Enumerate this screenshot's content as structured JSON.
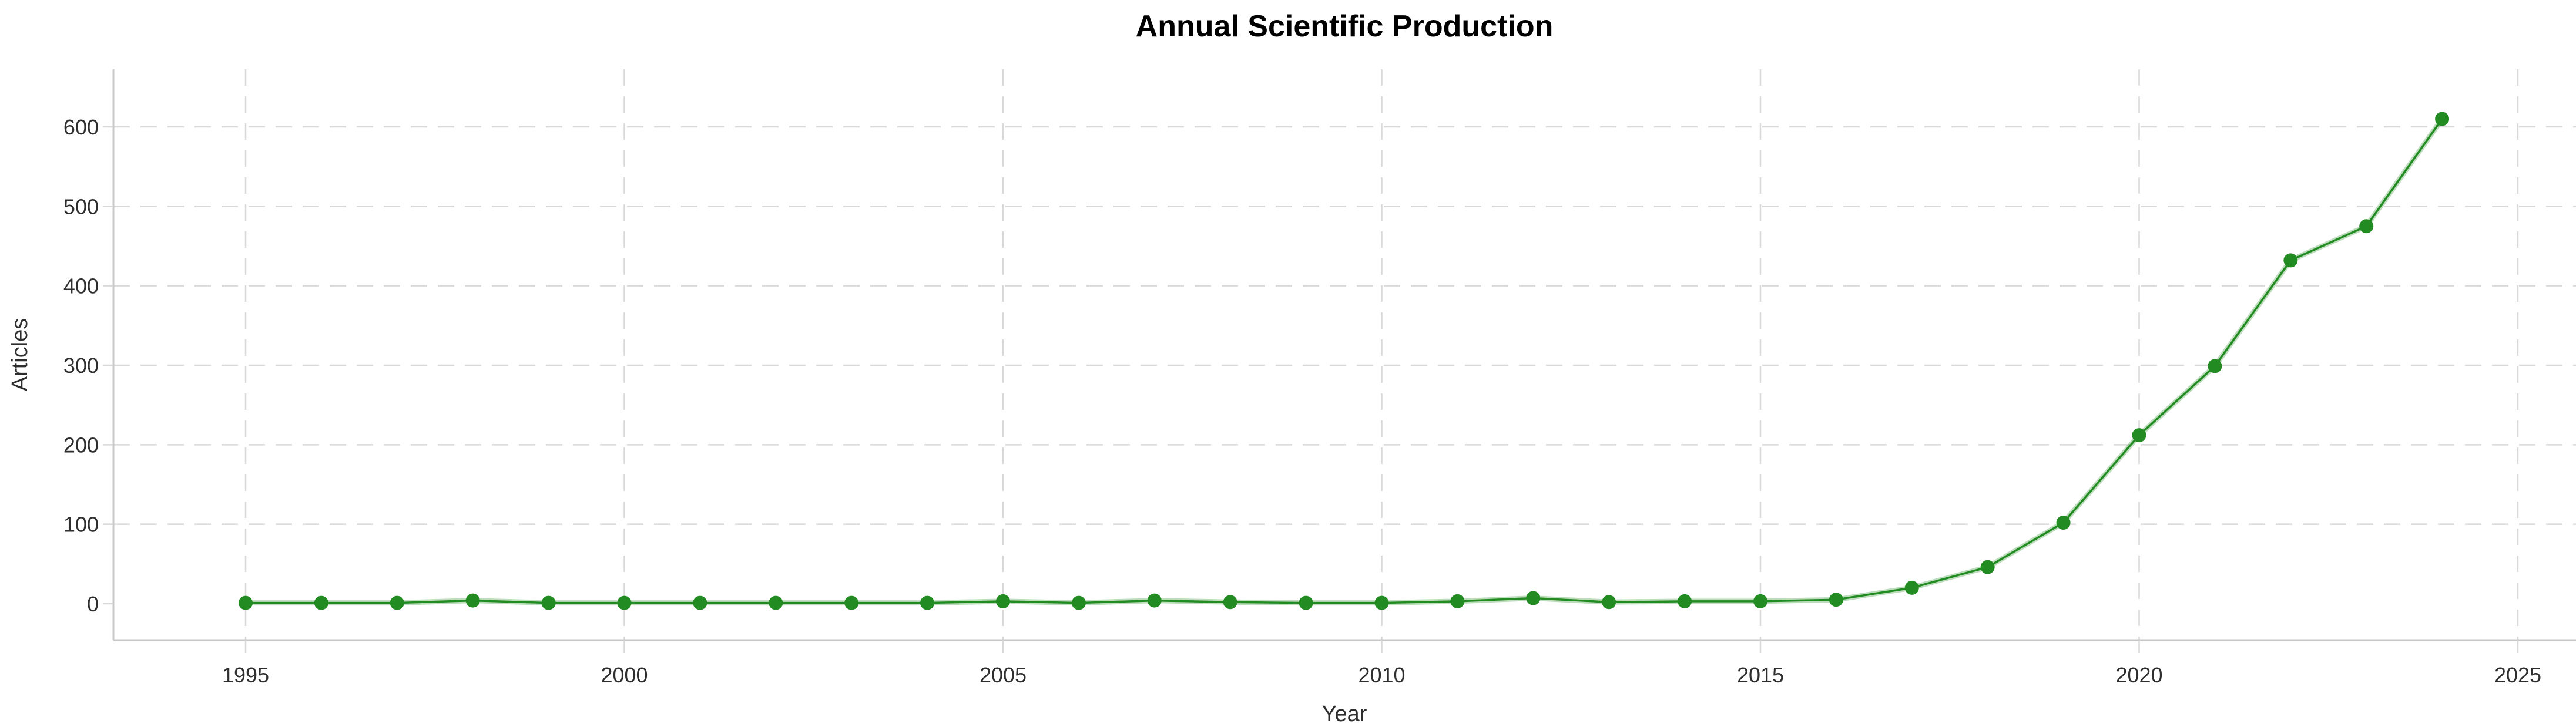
{
  "page": {
    "title": "Annual Scientific Production"
  },
  "chart_data": {
    "type": "line",
    "title": "Annual Scientific Production",
    "xlabel": "Year",
    "ylabel": "Articles",
    "legend_position": "none",
    "grid": "dashed",
    "x_ticks": [
      1995,
      2000,
      2005,
      2010,
      2015,
      2020,
      2025
    ],
    "y_ticks": [
      0,
      100,
      200,
      300,
      400,
      500,
      600
    ],
    "y_gridlines": [
      100,
      200,
      300,
      400,
      500,
      600
    ],
    "xlim": [
      1993.3,
      2025.8
    ],
    "ylim": [
      0,
      670
    ],
    "series": [
      {
        "name": "Articles",
        "color": "#228B22",
        "x": [
          1995,
          1996,
          1997,
          1998,
          1999,
          2000,
          2001,
          2002,
          2003,
          2004,
          2005,
          2006,
          2007,
          2008,
          2009,
          2010,
          2011,
          2012,
          2013,
          2014,
          2015,
          2016,
          2017,
          2018,
          2019,
          2020,
          2021,
          2022,
          2023,
          2024
        ],
        "values": [
          1,
          1,
          1,
          4,
          1,
          1,
          1,
          1,
          1,
          1,
          3,
          1,
          4,
          2,
          1,
          1,
          3,
          7,
          2,
          3,
          3,
          5,
          20,
          46,
          102,
          212,
          299,
          432,
          475,
          610
        ]
      }
    ],
    "colors": {
      "line": "#228B22",
      "grid": "#d9d9d9",
      "axis_line": "#c8c8c8",
      "tick_text": "#2e2e2e",
      "title_text": "#000000"
    }
  }
}
